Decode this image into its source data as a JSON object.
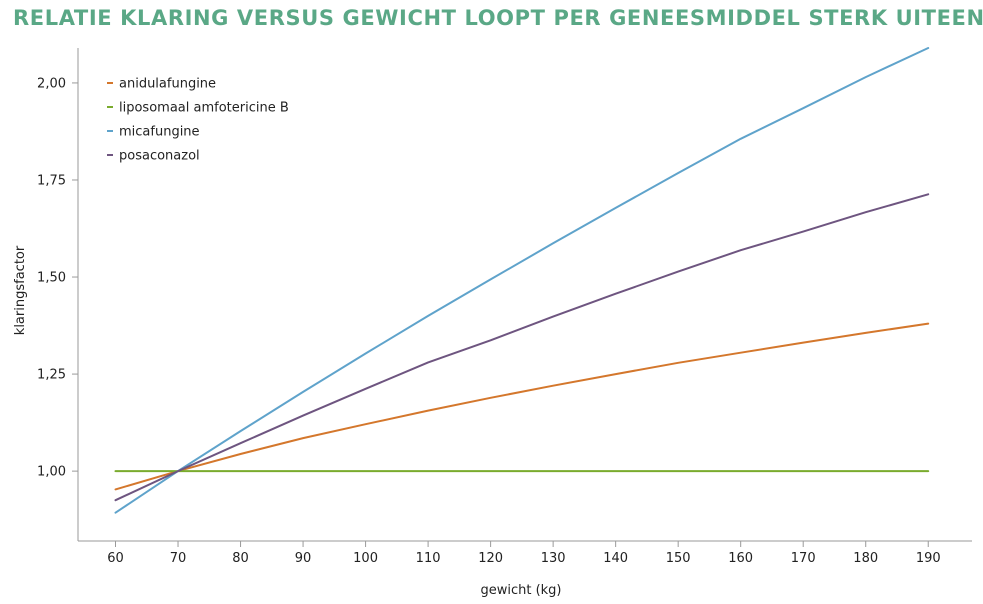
{
  "colors": {
    "title": "#5aa886",
    "axis": "#9a9a9a"
  },
  "chart_data": {
    "type": "line",
    "title": "RELATIE KLARING VERSUS GEWICHT LOOPT PER GENEESMIDDEL STERK UITEEN",
    "xlabel": "gewicht (kg)",
    "ylabel": "klaringsfactor",
    "xlim": [
      54,
      197
    ],
    "ylim": [
      0.82,
      2.09
    ],
    "xticks": [
      60,
      70,
      80,
      90,
      100,
      110,
      120,
      130,
      140,
      150,
      160,
      170,
      180,
      190
    ],
    "yticks": [
      {
        "value": 1.0,
        "label": "1,00"
      },
      {
        "value": 1.25,
        "label": "1,25"
      },
      {
        "value": 1.5,
        "label": "1,50"
      },
      {
        "value": 1.75,
        "label": "1,75"
      },
      {
        "value": 2.0,
        "label": "2,00"
      }
    ],
    "grid": false,
    "legend_position": "top-left",
    "series": [
      {
        "name": "anidulafungine",
        "color": "#d4772c",
        "x": [
          60,
          70,
          80,
          90,
          100,
          110,
          120,
          130,
          140,
          150,
          160,
          170,
          180,
          190
        ],
        "y": [
          0.953,
          1.0,
          1.044,
          1.085,
          1.121,
          1.156,
          1.189,
          1.22,
          1.25,
          1.279,
          1.305,
          1.331,
          1.356,
          1.38
        ]
      },
      {
        "name": "liposomaal amfotericine B",
        "color": "#7aab2e",
        "x": [
          60,
          70,
          80,
          90,
          100,
          110,
          120,
          130,
          140,
          150,
          160,
          170,
          180,
          190
        ],
        "y": [
          1.0,
          1.0,
          1.0,
          1.0,
          1.0,
          1.0,
          1.0,
          1.0,
          1.0,
          1.0,
          1.0,
          1.0,
          1.0,
          1.0
        ]
      },
      {
        "name": "micafungine",
        "color": "#5fa3cb",
        "x": [
          60,
          70,
          80,
          90,
          100,
          110,
          120,
          130,
          140,
          150,
          160,
          170,
          180,
          190
        ],
        "y": [
          0.893,
          1.0,
          1.103,
          1.204,
          1.303,
          1.4,
          1.494,
          1.587,
          1.678,
          1.768,
          1.856,
          1.935,
          2.015,
          2.09
        ]
      },
      {
        "name": "posaconazol",
        "color": "#6e5580",
        "x": [
          60,
          70,
          80,
          90,
          100,
          110,
          120,
          130,
          140,
          150,
          160,
          170,
          180,
          190
        ],
        "y": [
          0.925,
          1.0,
          1.072,
          1.143,
          1.212,
          1.28,
          1.337,
          1.398,
          1.457,
          1.514,
          1.569,
          1.617,
          1.667,
          1.713
        ]
      }
    ]
  }
}
